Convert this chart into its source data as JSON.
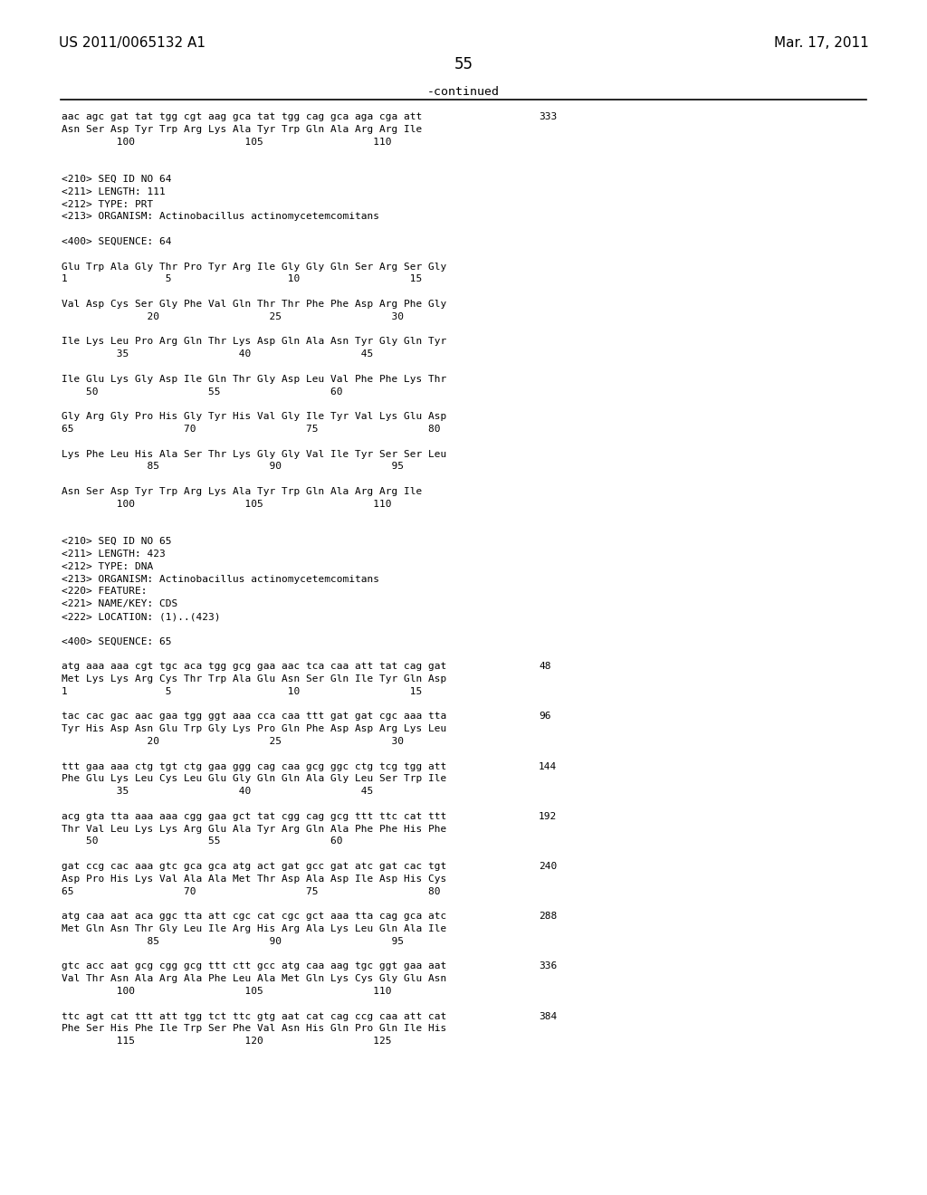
{
  "header_left": "US 2011/0065132 A1",
  "header_right": "Mar. 17, 2011",
  "page_number": "55",
  "continued_label": "-continued",
  "background_color": "#ffffff",
  "text_color": "#000000",
  "lines_content": [
    [
      "aac agc gat tat tgg cgt aag gca tat tgg cag gca aga cga att",
      "333"
    ],
    [
      "Asn Ser Asp Tyr Trp Arg Lys Ala Tyr Trp Gln Ala Arg Arg Ile",
      ""
    ],
    [
      "         100                  105                  110",
      ""
    ],
    [
      "",
      ""
    ],
    [
      "",
      ""
    ],
    [
      "<210> SEQ ID NO 64",
      ""
    ],
    [
      "<211> LENGTH: 111",
      ""
    ],
    [
      "<212> TYPE: PRT",
      ""
    ],
    [
      "<213> ORGANISM: Actinobacillus actinomycetemcomitans",
      ""
    ],
    [
      "",
      ""
    ],
    [
      "<400> SEQUENCE: 64",
      ""
    ],
    [
      "",
      ""
    ],
    [
      "Glu Trp Ala Gly Thr Pro Tyr Arg Ile Gly Gly Gln Ser Arg Ser Gly",
      ""
    ],
    [
      "1                5                   10                  15",
      ""
    ],
    [
      "",
      ""
    ],
    [
      "Val Asp Cys Ser Gly Phe Val Gln Thr Thr Phe Phe Asp Arg Phe Gly",
      ""
    ],
    [
      "              20                  25                  30",
      ""
    ],
    [
      "",
      ""
    ],
    [
      "Ile Lys Leu Pro Arg Gln Thr Lys Asp Gln Ala Asn Tyr Gly Gln Tyr",
      ""
    ],
    [
      "         35                  40                  45",
      ""
    ],
    [
      "",
      ""
    ],
    [
      "Ile Glu Lys Gly Asp Ile Gln Thr Gly Asp Leu Val Phe Phe Lys Thr",
      ""
    ],
    [
      "    50                  55                  60",
      ""
    ],
    [
      "",
      ""
    ],
    [
      "Gly Arg Gly Pro His Gly Tyr His Val Gly Ile Tyr Val Lys Glu Asp",
      ""
    ],
    [
      "65                  70                  75                  80",
      ""
    ],
    [
      "",
      ""
    ],
    [
      "Lys Phe Leu His Ala Ser Thr Lys Gly Gly Val Ile Tyr Ser Ser Leu",
      ""
    ],
    [
      "              85                  90                  95",
      ""
    ],
    [
      "",
      ""
    ],
    [
      "Asn Ser Asp Tyr Trp Arg Lys Ala Tyr Trp Gln Ala Arg Arg Ile",
      ""
    ],
    [
      "         100                  105                  110",
      ""
    ],
    [
      "",
      ""
    ],
    [
      "",
      ""
    ],
    [
      "<210> SEQ ID NO 65",
      ""
    ],
    [
      "<211> LENGTH: 423",
      ""
    ],
    [
      "<212> TYPE: DNA",
      ""
    ],
    [
      "<213> ORGANISM: Actinobacillus actinomycetemcomitans",
      ""
    ],
    [
      "<220> FEATURE:",
      ""
    ],
    [
      "<221> NAME/KEY: CDS",
      ""
    ],
    [
      "<222> LOCATION: (1)..(423)",
      ""
    ],
    [
      "",
      ""
    ],
    [
      "<400> SEQUENCE: 65",
      ""
    ],
    [
      "",
      ""
    ],
    [
      "atg aaa aaa cgt tgc aca tgg gcg gaa aac tca caa att tat cag gat",
      "48"
    ],
    [
      "Met Lys Lys Arg Cys Thr Trp Ala Glu Asn Ser Gln Ile Tyr Gln Asp",
      ""
    ],
    [
      "1                5                   10                  15",
      ""
    ],
    [
      "",
      ""
    ],
    [
      "tac cac gac aac gaa tgg ggt aaa cca caa ttt gat gat cgc aaa tta",
      "96"
    ],
    [
      "Tyr His Asp Asn Glu Trp Gly Lys Pro Gln Phe Asp Asp Arg Lys Leu",
      ""
    ],
    [
      "              20                  25                  30",
      ""
    ],
    [
      "",
      ""
    ],
    [
      "ttt gaa aaa ctg tgt ctg gaa ggg cag caa gcg ggc ctg tcg tgg att",
      "144"
    ],
    [
      "Phe Glu Lys Leu Cys Leu Glu Gly Gln Gln Ala Gly Leu Ser Trp Ile",
      ""
    ],
    [
      "         35                  40                  45",
      ""
    ],
    [
      "",
      ""
    ],
    [
      "acg gta tta aaa aaa cgg gaa gct tat cgg cag gcg ttt ttc cat ttt",
      "192"
    ],
    [
      "Thr Val Leu Lys Lys Arg Glu Ala Tyr Arg Gln Ala Phe Phe His Phe",
      ""
    ],
    [
      "    50                  55                  60",
      ""
    ],
    [
      "",
      ""
    ],
    [
      "gat ccg cac aaa gtc gca gca atg act gat gcc gat atc gat cac tgt",
      "240"
    ],
    [
      "Asp Pro His Lys Val Ala Ala Met Thr Asp Ala Asp Ile Asp His Cys",
      ""
    ],
    [
      "65                  70                  75                  80",
      ""
    ],
    [
      "",
      ""
    ],
    [
      "atg caa aat aca ggc tta att cgc cat cgc gct aaa tta cag gca atc",
      "288"
    ],
    [
      "Met Gln Asn Thr Gly Leu Ile Arg His Arg Ala Lys Leu Gln Ala Ile",
      ""
    ],
    [
      "              85                  90                  95",
      ""
    ],
    [
      "",
      ""
    ],
    [
      "gtc acc aat gcg cgg gcg ttt ctt gcc atg caa aag tgc ggt gaa aat",
      "336"
    ],
    [
      "Val Thr Asn Ala Arg Ala Phe Leu Ala Met Gln Lys Cys Gly Glu Asn",
      ""
    ],
    [
      "         100                  105                  110",
      ""
    ],
    [
      "",
      ""
    ],
    [
      "ttc agt cat ttt att tgg tct ttc gtg aat cat cag ccg caa att cat",
      "384"
    ],
    [
      "Phe Ser His Phe Ile Trp Ser Phe Val Asn His Gln Pro Gln Ile His",
      ""
    ],
    [
      "         115                  120                  125",
      ""
    ]
  ]
}
